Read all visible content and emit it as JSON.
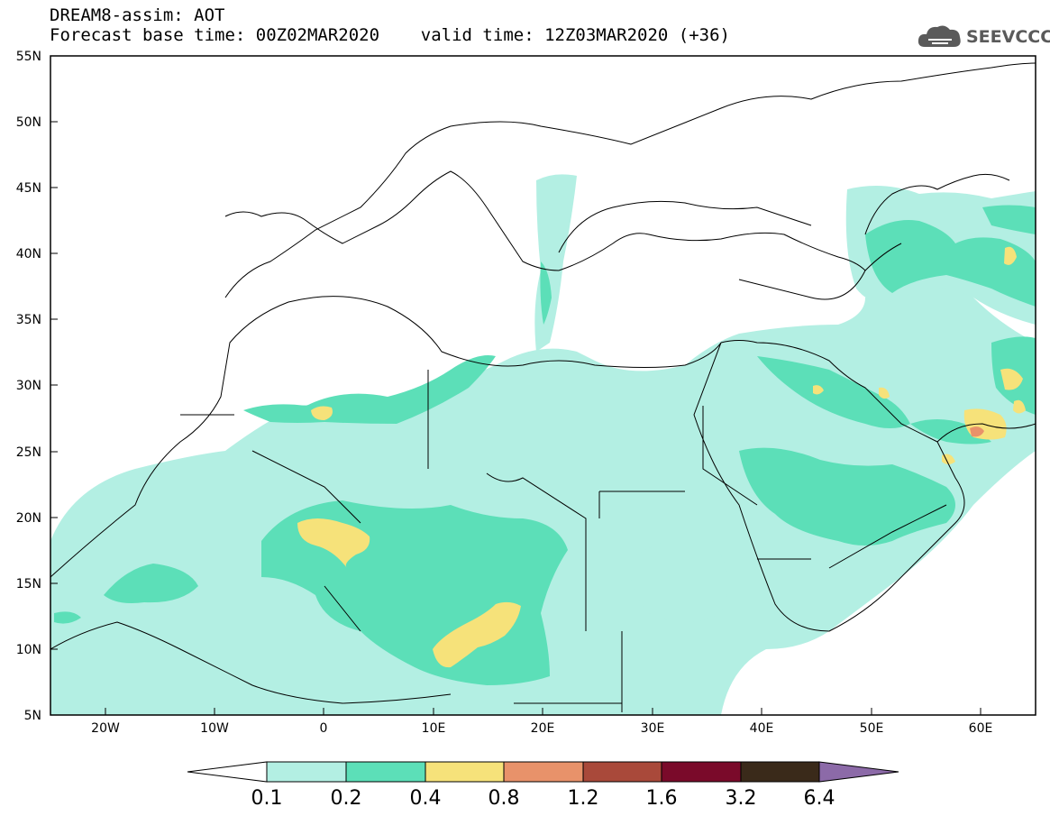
{
  "header": {
    "title": "DREAM8-assim: AOT",
    "subtitle": "Forecast base time: 00Z02MAR2020    valid time: 12Z03MAR2020 (+36)"
  },
  "logo": {
    "text": "SEEVCCC",
    "icon": "cloud-icon"
  },
  "map": {
    "lon_range": [
      -25,
      65
    ],
    "lat_range": [
      5,
      55
    ],
    "lat_labels": [
      "55N",
      "50N",
      "45N",
      "40N",
      "35N",
      "30N",
      "25N",
      "20N",
      "15N",
      "10N",
      "5N"
    ],
    "lon_labels": [
      "20W",
      "10W",
      "0",
      "10E",
      "20E",
      "30E",
      "40E",
      "50E",
      "60E"
    ]
  },
  "colorbar": {
    "labels": [
      "0.1",
      "0.2",
      "0.4",
      "0.8",
      "1.2",
      "1.6",
      "3.2",
      "6.4"
    ],
    "colors": [
      "#ffffff",
      "#b3efe3",
      "#5cdfb8",
      "#f6e27a",
      "#e8926a",
      "#a9493a",
      "#7a0a2a",
      "#3a2a1a",
      "#8c6aa8"
    ]
  }
}
